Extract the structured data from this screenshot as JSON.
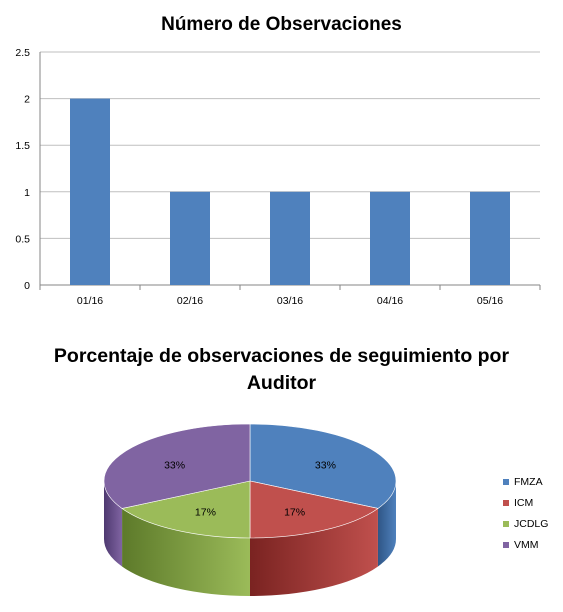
{
  "chart_data": [
    {
      "type": "bar",
      "title": "Número de Observaciones",
      "categories": [
        "01/16",
        "02/16",
        "03/16",
        "04/16",
        "05/16"
      ],
      "values": [
        2,
        1,
        1,
        1,
        1
      ],
      "yticks": [
        "0",
        "0.5",
        "1",
        "1.5",
        "2",
        "2.5"
      ],
      "ylim": [
        0,
        2.5
      ],
      "grid": true,
      "colors": {
        "bar": "#4f81bd",
        "grid": "#bfbfbf"
      }
    },
    {
      "type": "pie",
      "title": "Porcentaje de observaciones de seguimiento por Auditor",
      "slices": [
        {
          "label": "FMZA",
          "value": 33,
          "text": "33%",
          "color": "#4f81bd",
          "dark": "#2f5686"
        },
        {
          "label": "ICM",
          "value": 17,
          "text": "17%",
          "color": "#c0504d",
          "dark": "#7a2321"
        },
        {
          "label": "JCDLG",
          "value": 17,
          "text": "17%",
          "color": "#9bbb59",
          "dark": "#5d7a2a"
        },
        {
          "label": "VMM",
          "value": 33,
          "text": "33%",
          "color": "#8064a2",
          "dark": "#4e3970"
        }
      ],
      "legend_position": "right"
    }
  ]
}
